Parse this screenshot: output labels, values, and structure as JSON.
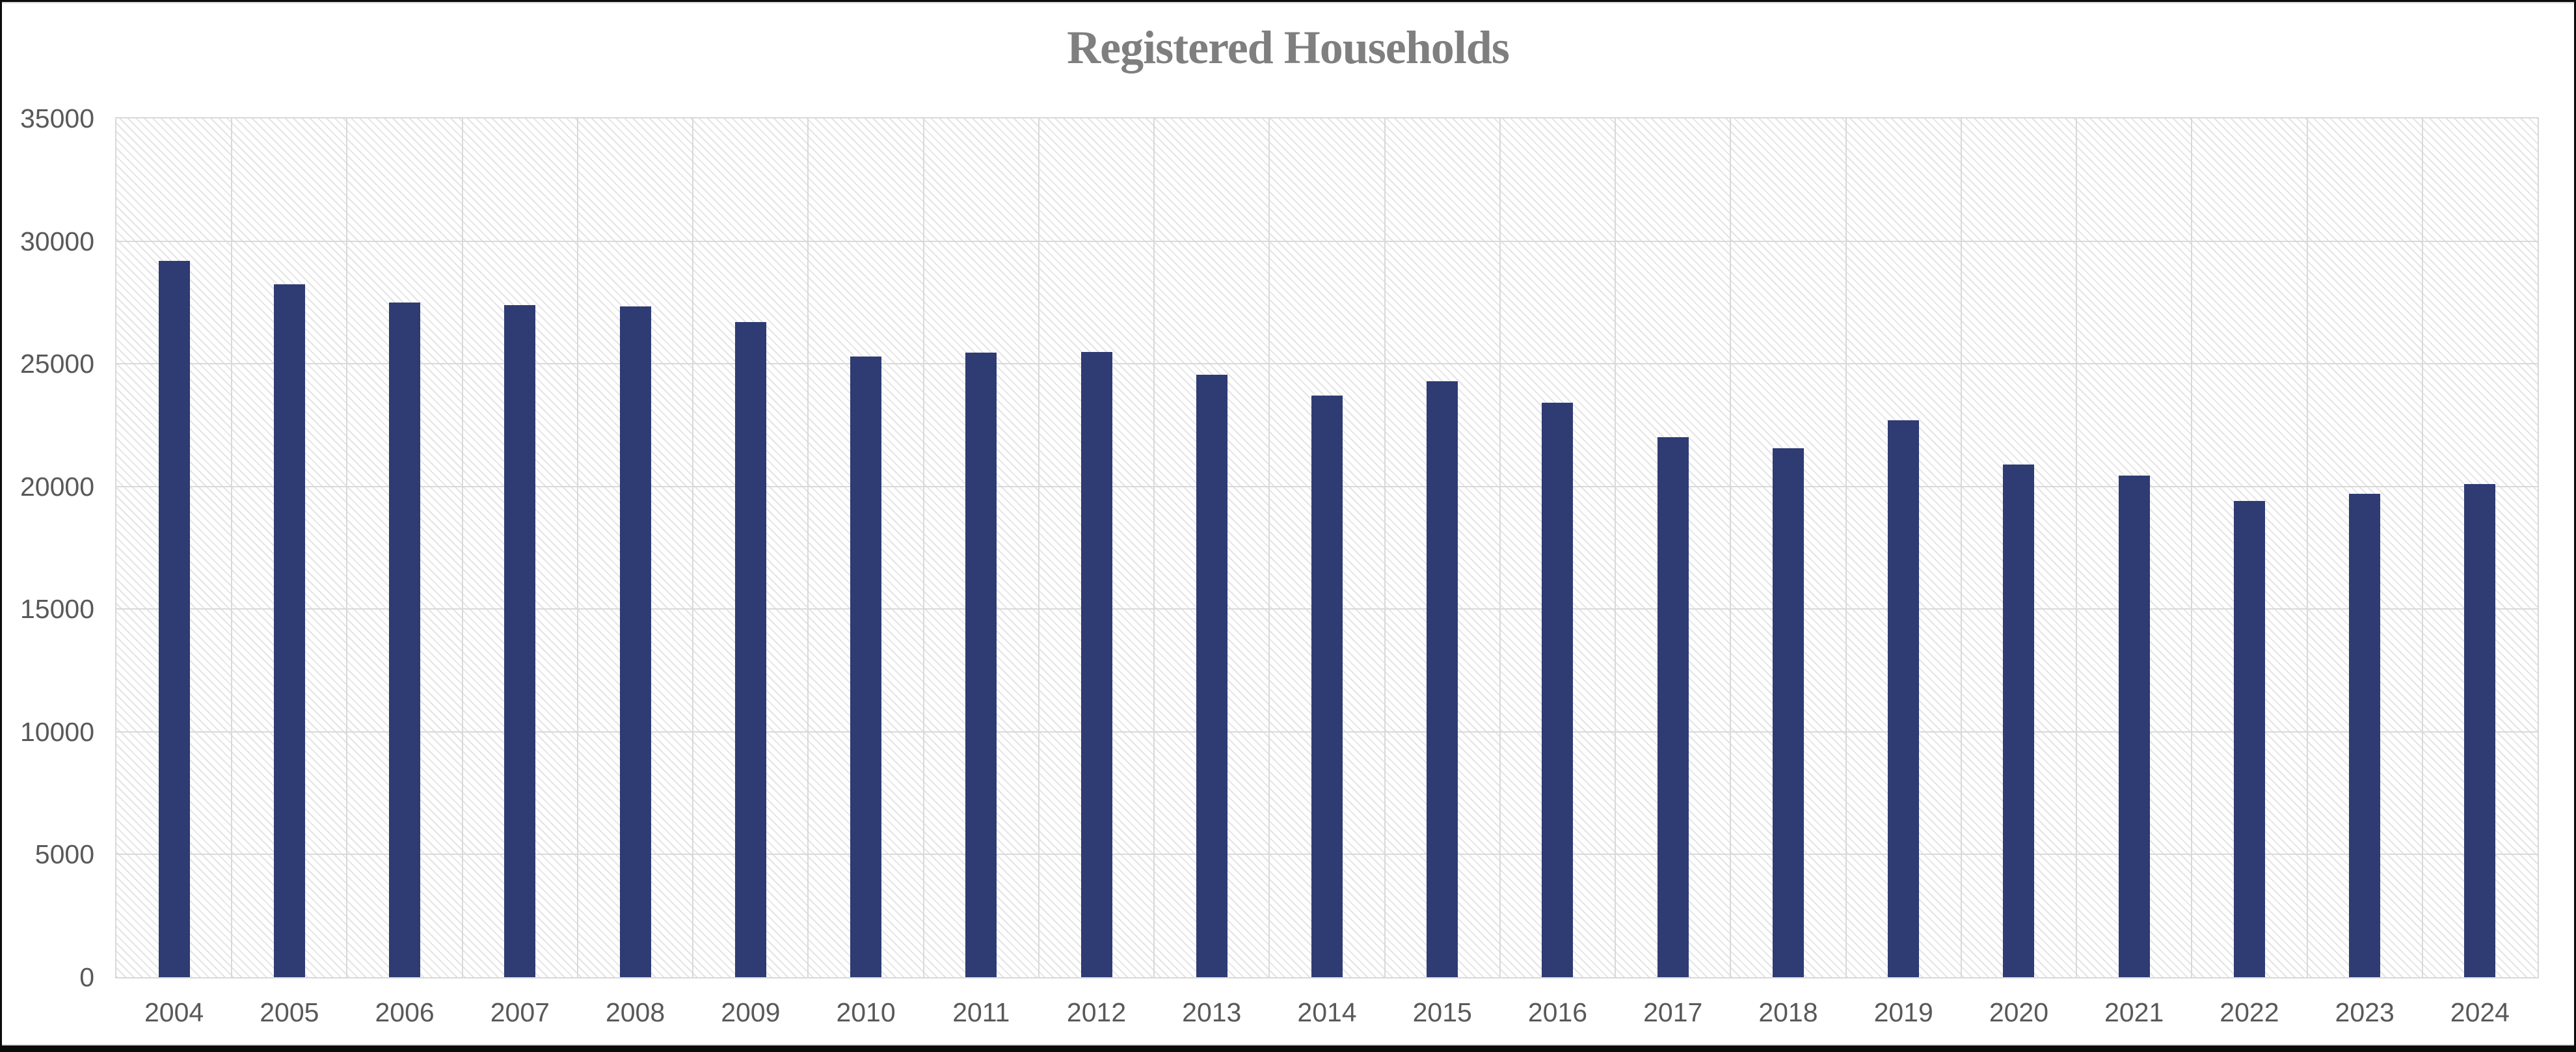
{
  "chart_data": {
    "type": "bar",
    "title": "Registered Households",
    "categories": [
      "2004",
      "2005",
      "2006",
      "2007",
      "2008",
      "2009",
      "2010",
      "2011",
      "2012",
      "2013",
      "2014",
      "2015",
      "2016",
      "2017",
      "2018",
      "2019",
      "2020",
      "2021",
      "2022",
      "2023",
      "2024"
    ],
    "values": [
      29200,
      28250,
      27500,
      27400,
      27350,
      26700,
      25300,
      25450,
      25480,
      24550,
      23700,
      24300,
      23400,
      22000,
      21550,
      22700,
      20900,
      20450,
      19400,
      19700,
      20100
    ],
    "series_name": "Registered Households",
    "xlabel": "",
    "ylabel": "",
    "ylim": [
      0,
      35000
    ],
    "ytick_step": 5000,
    "ytick_labels": [
      "0",
      "5000",
      "10000",
      "15000",
      "20000",
      "25000",
      "30000",
      "35000"
    ],
    "legend": "none",
    "grid": "horizontal value lines and vertical category-boundary lines",
    "plot_background": "white with light gray diagonal hatch",
    "colors": {
      "bar": "#2f3b73",
      "gridline": "#d9d9d9",
      "hatch": "#e4e4e4",
      "tick_label": "#595959",
      "title": "#7f7f7f",
      "frame_border": "#0b0b0b"
    }
  }
}
